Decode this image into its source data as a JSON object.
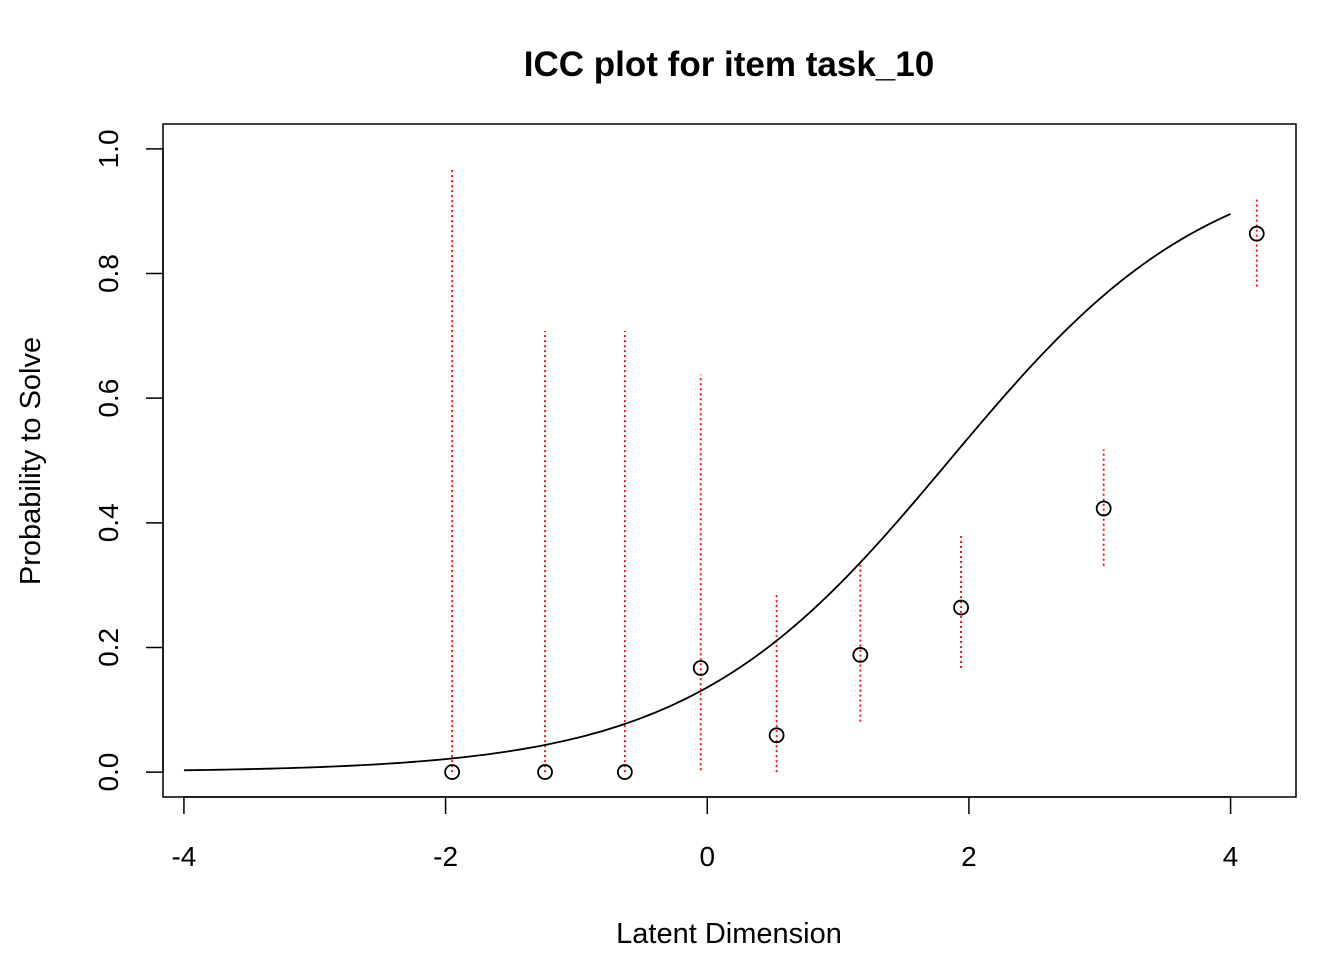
{
  "chart_data": {
    "type": "line",
    "title": "ICC plot for item  task_10",
    "xlabel": "Latent Dimension",
    "ylabel": "Probability to Solve",
    "xlim": [
      -4.16,
      4.5
    ],
    "ylim": [
      -0.04,
      1.04
    ],
    "x_ticks": [
      -4,
      -2,
      0,
      2,
      4
    ],
    "y_ticks": [
      0.0,
      0.2,
      0.4,
      0.6,
      0.8,
      1.0
    ],
    "x_tick_labels": [
      "-4",
      "-2",
      "0",
      "2",
      "4"
    ],
    "y_tick_labels": [
      "0.0",
      "0.2",
      "0.4",
      "0.6",
      "0.8",
      "1.0"
    ],
    "grid": false,
    "curve": {
      "model": "logistic",
      "difficulty": 1.85,
      "discrimination": 1.0,
      "x_range": [
        -4,
        4
      ],
      "color": "#000000"
    },
    "points": [
      {
        "x": -1.95,
        "y": 0.0,
        "ci_low": 0.0,
        "ci_high": 0.967
      },
      {
        "x": -1.24,
        "y": 0.0,
        "ci_low": 0.0,
        "ci_high": 0.708
      },
      {
        "x": -0.63,
        "y": 0.0,
        "ci_low": 0.0,
        "ci_high": 0.708
      },
      {
        "x": -0.05,
        "y": 0.167,
        "ci_low": 0.003,
        "ci_high": 0.638
      },
      {
        "x": 0.53,
        "y": 0.059,
        "ci_low": 0.0,
        "ci_high": 0.289
      },
      {
        "x": 1.17,
        "y": 0.188,
        "ci_low": 0.081,
        "ci_high": 0.335
      },
      {
        "x": 1.94,
        "y": 0.264,
        "ci_low": 0.167,
        "ci_high": 0.38
      },
      {
        "x": 3.03,
        "y": 0.423,
        "ci_low": 0.331,
        "ci_high": 0.518
      },
      {
        "x": 4.2,
        "y": 0.864,
        "ci_low": 0.779,
        "ci_high": 0.922
      }
    ],
    "point_color": "#000000",
    "ci_color": "#ff0000"
  }
}
